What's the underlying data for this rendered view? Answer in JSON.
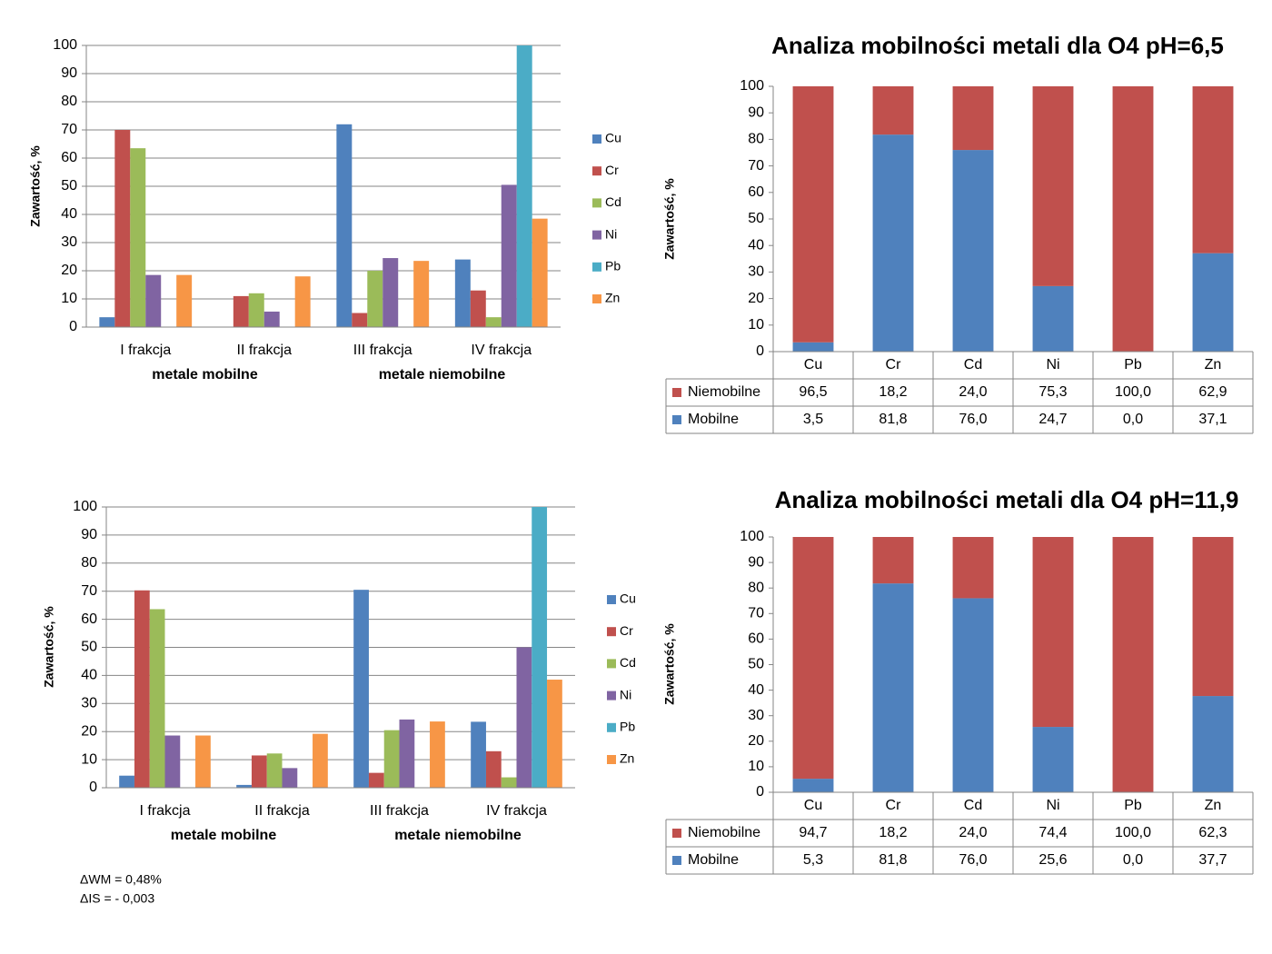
{
  "chart_data": [
    {
      "type": "bar",
      "y_label": "Zawartość, %",
      "categories": [
        "I frakcja",
        "II frakcja",
        "III frakcja",
        "IV frakcja"
      ],
      "category_groups": [
        "metale mobilne",
        "metale niemobilne"
      ],
      "series": [
        {
          "name": "Cu",
          "color": "#4f81bd",
          "values": [
            3.5,
            0,
            72,
            24
          ]
        },
        {
          "name": "Cr",
          "color": "#c0504d",
          "values": [
            70,
            11,
            5,
            13
          ]
        },
        {
          "name": "Cd",
          "color": "#9bbb59",
          "values": [
            63.5,
            12,
            20,
            3.5
          ]
        },
        {
          "name": "Ni",
          "color": "#8064a2",
          "values": [
            18.5,
            5.5,
            24.5,
            50.5
          ]
        },
        {
          "name": "Pb",
          "color": "#4bacc6",
          "values": [
            0,
            0,
            0,
            100
          ]
        },
        {
          "name": "Zn",
          "color": "#f79646",
          "values": [
            18.5,
            18,
            23.5,
            38.5
          ]
        }
      ],
      "ylim": [
        0,
        100
      ],
      "yticks": [
        0,
        10,
        20,
        30,
        40,
        50,
        60,
        70,
        80,
        90,
        100
      ],
      "grid": true,
      "legend": "right"
    },
    {
      "type": "stacked_bar",
      "title": "Analiza mobilności metali dla O4 pH=6,5",
      "y_label": "Zawartość, %",
      "categories": [
        "Cu",
        "Cr",
        "Cd",
        "Ni",
        "Pb",
        "Zn"
      ],
      "series": [
        {
          "name": "Mobilne",
          "color": "#4f81bd",
          "values": [
            3.5,
            81.8,
            76.0,
            24.7,
            0.0,
            37.1
          ],
          "value_labels": [
            "3,5",
            "81,8",
            "76,0",
            "24,7",
            "0,0",
            "37,1"
          ]
        },
        {
          "name": "Niemobilne",
          "color": "#c0504d",
          "values": [
            96.5,
            18.2,
            24.0,
            75.3,
            100.0,
            62.9
          ],
          "value_labels": [
            "96,5",
            "18,2",
            "24,0",
            "75,3",
            "100,0",
            "62,9"
          ]
        }
      ],
      "ylim": [
        0,
        100
      ],
      "yticks": [
        0,
        10,
        20,
        30,
        40,
        50,
        60,
        70,
        80,
        90,
        100
      ],
      "grid": false,
      "legend": "table"
    },
    {
      "type": "bar",
      "y_label": "Zawartość, %",
      "categories": [
        "I frakcja",
        "II frakcja",
        "III frakcja",
        "IV frakcja"
      ],
      "category_groups": [
        "metale mobilne",
        "metale niemobilne"
      ],
      "series": [
        {
          "name": "Cu",
          "color": "#4f81bd",
          "values": [
            4.3,
            1.0,
            70.5,
            23.5
          ]
        },
        {
          "name": "Cr",
          "color": "#c0504d",
          "values": [
            70.3,
            11.5,
            5.3,
            13
          ]
        },
        {
          "name": "Cd",
          "color": "#9bbb59",
          "values": [
            63.6,
            12.2,
            20.5,
            3.7
          ]
        },
        {
          "name": "Ni",
          "color": "#8064a2",
          "values": [
            18.6,
            7,
            24.3,
            50
          ]
        },
        {
          "name": "Pb",
          "color": "#4bacc6",
          "values": [
            0,
            0,
            0,
            100
          ]
        },
        {
          "name": "Zn",
          "color": "#f79646",
          "values": [
            18.6,
            19.2,
            23.6,
            38.5
          ]
        }
      ],
      "ylim": [
        0,
        100
      ],
      "yticks": [
        0,
        10,
        20,
        30,
        40,
        50,
        60,
        70,
        80,
        90,
        100
      ],
      "grid": true,
      "legend": "right",
      "annotations": [
        "ΔWM = 0,48%",
        "ΔIS = - 0,003"
      ]
    },
    {
      "type": "stacked_bar",
      "title": "Analiza mobilności metali dla O4 pH=11,9",
      "y_label": "Zawartość, %",
      "categories": [
        "Cu",
        "Cr",
        "Cd",
        "Ni",
        "Pb",
        "Zn"
      ],
      "series": [
        {
          "name": "Mobilne",
          "color": "#4f81bd",
          "values": [
            5.3,
            81.8,
            76.0,
            25.6,
            0.0,
            37.7
          ],
          "value_labels": [
            "5,3",
            "81,8",
            "76,0",
            "25,6",
            "0,0",
            "37,7"
          ]
        },
        {
          "name": "Niemobilne",
          "color": "#c0504d",
          "values": [
            94.7,
            18.2,
            24.0,
            74.4,
            100.0,
            62.3
          ],
          "value_labels": [
            "94,7",
            "18,2",
            "24,0",
            "74,4",
            "100,0",
            "62,3"
          ]
        }
      ],
      "ylim": [
        0,
        100
      ],
      "yticks": [
        0,
        10,
        20,
        30,
        40,
        50,
        60,
        70,
        80,
        90,
        100
      ],
      "grid": false,
      "legend": "table"
    }
  ]
}
